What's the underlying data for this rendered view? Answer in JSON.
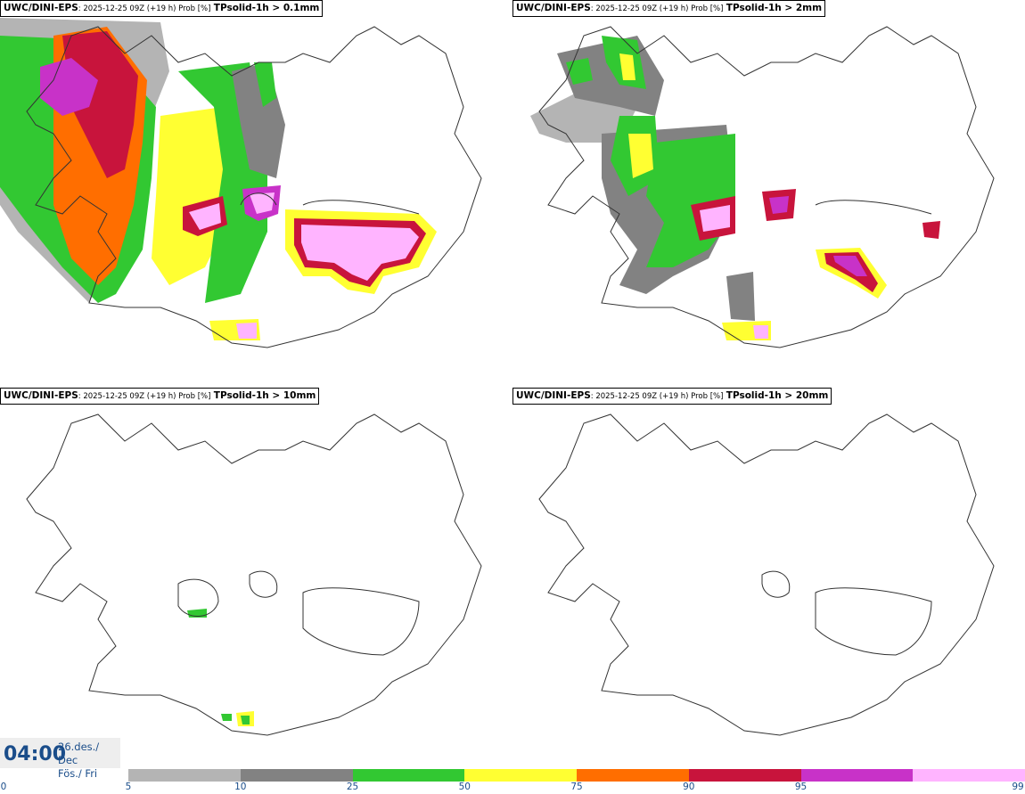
{
  "panels": [
    {
      "model": "UWC/DINI-EPS",
      "meta": ": 2025-12-25 09Z (+19 h) Prob [%]",
      "param": "TPsolid-1h > 0.1mm"
    },
    {
      "model": "UWC/DINI-EPS",
      "meta": ": 2025-12-25 09Z (+19 h) Prob [%]",
      "param": "TPsolid-1h > 2mm"
    },
    {
      "model": "UWC/DINI-EPS",
      "meta": ": 2025-12-25 09Z (+19 h) Prob [%]",
      "param": "TPsolid-1h > 10mm"
    },
    {
      "model": "UWC/DINI-EPS",
      "meta": ": 2025-12-25 09Z (+19 h) Prob [%]",
      "param": "TPsolid-1h > 20mm"
    }
  ],
  "valid_time": {
    "time": "04:00",
    "date_line1": "26.des./ Dec",
    "date_line2": "Fös./ Fri"
  },
  "legend": {
    "ticks": [
      "0",
      "5",
      "10",
      "25",
      "50",
      "75",
      "90",
      "95",
      "99"
    ],
    "colors": [
      "#b4b4b4",
      "#828282",
      "#32c832",
      "#ffff32",
      "#ff6e00",
      "#c8143c",
      "#c832c8",
      "#ffb4ff"
    ]
  }
}
